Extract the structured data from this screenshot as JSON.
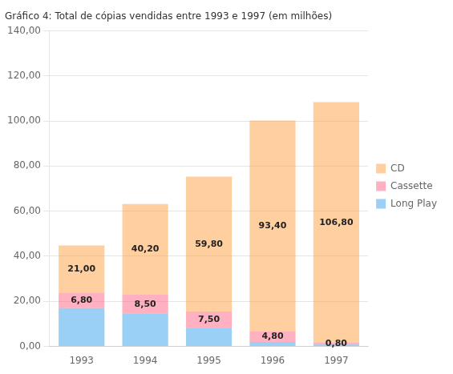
{
  "chart_data": {
    "type": "bar",
    "title": "Gráfico 4: Total de cópias vendidas entre 1993 e 1997 (em milhões)",
    "categories": [
      "1993",
      "1994",
      "1995",
      "1996",
      "1997"
    ],
    "series": [
      {
        "name": "Long Play",
        "values": [
          17.0,
          14.5,
          8.0,
          2.0,
          0.8
        ],
        "data_labels": false
      },
      {
        "name": "Cassette",
        "values": [
          6.8,
          8.5,
          7.5,
          4.8,
          0.8
        ],
        "data_labels": true,
        "value_labels": [
          "6,80",
          "8,50",
          "7,50",
          "4,80",
          "0,80"
        ]
      },
      {
        "name": "CD",
        "values": [
          21.0,
          40.2,
          59.8,
          93.4,
          106.8
        ],
        "data_labels": true,
        "value_labels": [
          "21,00",
          "40,20",
          "59,80",
          "93,40",
          "106,80"
        ]
      }
    ],
    "stacked": true,
    "ylim": [
      0,
      140
    ],
    "yticks": [
      {
        "value": 0,
        "label": "0,00"
      },
      {
        "value": 20,
        "label": "20,00"
      },
      {
        "value": 40,
        "label": "40,00"
      },
      {
        "value": 60,
        "label": "60,00"
      },
      {
        "value": 80,
        "label": "80,00"
      },
      {
        "value": 100,
        "label": "100,00"
      },
      {
        "value": 120,
        "label": "120,00"
      },
      {
        "value": 140,
        "label": "140,00"
      }
    ],
    "grid": true,
    "legend": "right"
  }
}
